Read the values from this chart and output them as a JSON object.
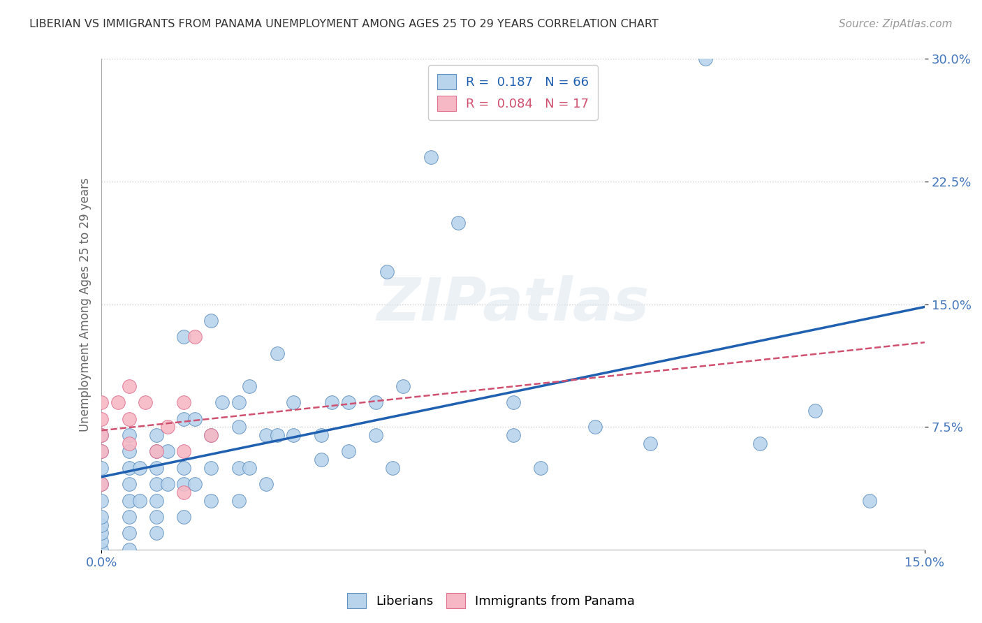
{
  "title": "LIBERIAN VS IMMIGRANTS FROM PANAMA UNEMPLOYMENT AMONG AGES 25 TO 29 YEARS CORRELATION CHART",
  "source": "Source: ZipAtlas.com",
  "ylabel": "Unemployment Among Ages 25 to 29 years",
  "xlim": [
    0.0,
    0.15
  ],
  "ylim": [
    0.0,
    0.3
  ],
  "xticks": [
    0.0,
    0.15
  ],
  "xticklabels": [
    "0.0%",
    "15.0%"
  ],
  "yticks": [
    0.075,
    0.15,
    0.225,
    0.3
  ],
  "yticklabels": [
    "7.5%",
    "15.0%",
    "22.5%",
    "30.0%"
  ],
  "liberian_color": "#b8d4ec",
  "panama_color": "#f5b8c4",
  "liberian_edge_color": "#6090c0",
  "panama_edge_color": "#e07090",
  "liberian_line_color": "#2060b0",
  "panama_line_color": "#d05070",
  "legend_line1": "R =  0.187   N = 66",
  "legend_line2": "R =  0.084   N = 17",
  "watermark": "ZIPatlas",
  "liberian_x": [
    0.0,
    0.0,
    0.0,
    0.0,
    0.0,
    0.0,
    0.0,
    0.0,
    0.0,
    0.0,
    0.005,
    0.005,
    0.005,
    0.005,
    0.005,
    0.005,
    0.005,
    0.005,
    0.007,
    0.007,
    0.01,
    0.01,
    0.01,
    0.01,
    0.01,
    0.01,
    0.01,
    0.012,
    0.012,
    0.015,
    0.015,
    0.015,
    0.015,
    0.015,
    0.017,
    0.017,
    0.02,
    0.02,
    0.02,
    0.02,
    0.022,
    0.025,
    0.025,
    0.025,
    0.027,
    0.027,
    0.03,
    0.03,
    0.032,
    0.032,
    0.035,
    0.035,
    0.04,
    0.042,
    0.045,
    0.045,
    0.05,
    0.05,
    0.052,
    0.055,
    0.06,
    0.065,
    0.075,
    0.09,
    0.12,
    0.14
  ],
  "liberian_y": [
    0.0,
    0.005,
    0.01,
    0.015,
    0.02,
    0.03,
    0.04,
    0.05,
    0.06,
    0.07,
    0.0,
    0.01,
    0.02,
    0.03,
    0.04,
    0.05,
    0.06,
    0.07,
    0.03,
    0.05,
    0.01,
    0.02,
    0.03,
    0.04,
    0.05,
    0.06,
    0.07,
    0.04,
    0.06,
    0.02,
    0.04,
    0.05,
    0.08,
    0.13,
    0.04,
    0.08,
    0.03,
    0.05,
    0.07,
    0.14,
    0.09,
    0.03,
    0.05,
    0.09,
    0.05,
    0.1,
    0.04,
    0.07,
    0.07,
    0.12,
    0.07,
    0.09,
    0.07,
    0.09,
    0.06,
    0.09,
    0.07,
    0.09,
    0.17,
    0.1,
    0.24,
    0.2,
    0.09,
    0.075,
    0.065,
    0.03
  ],
  "liberian_x2": [
    0.025,
    0.04,
    0.053,
    0.075,
    0.08,
    0.1,
    0.11,
    0.13
  ],
  "liberian_y2": [
    0.075,
    0.055,
    0.05,
    0.07,
    0.05,
    0.065,
    0.3,
    0.085
  ],
  "panama_x": [
    0.0,
    0.0,
    0.0,
    0.0,
    0.0,
    0.003,
    0.005,
    0.005,
    0.005,
    0.008,
    0.01,
    0.012,
    0.015,
    0.015,
    0.015,
    0.017,
    0.02
  ],
  "panama_y": [
    0.04,
    0.06,
    0.07,
    0.08,
    0.09,
    0.09,
    0.065,
    0.08,
    0.1,
    0.09,
    0.06,
    0.075,
    0.035,
    0.06,
    0.09,
    0.13,
    0.07
  ],
  "background_color": "#ffffff",
  "grid_color": "#cccccc"
}
